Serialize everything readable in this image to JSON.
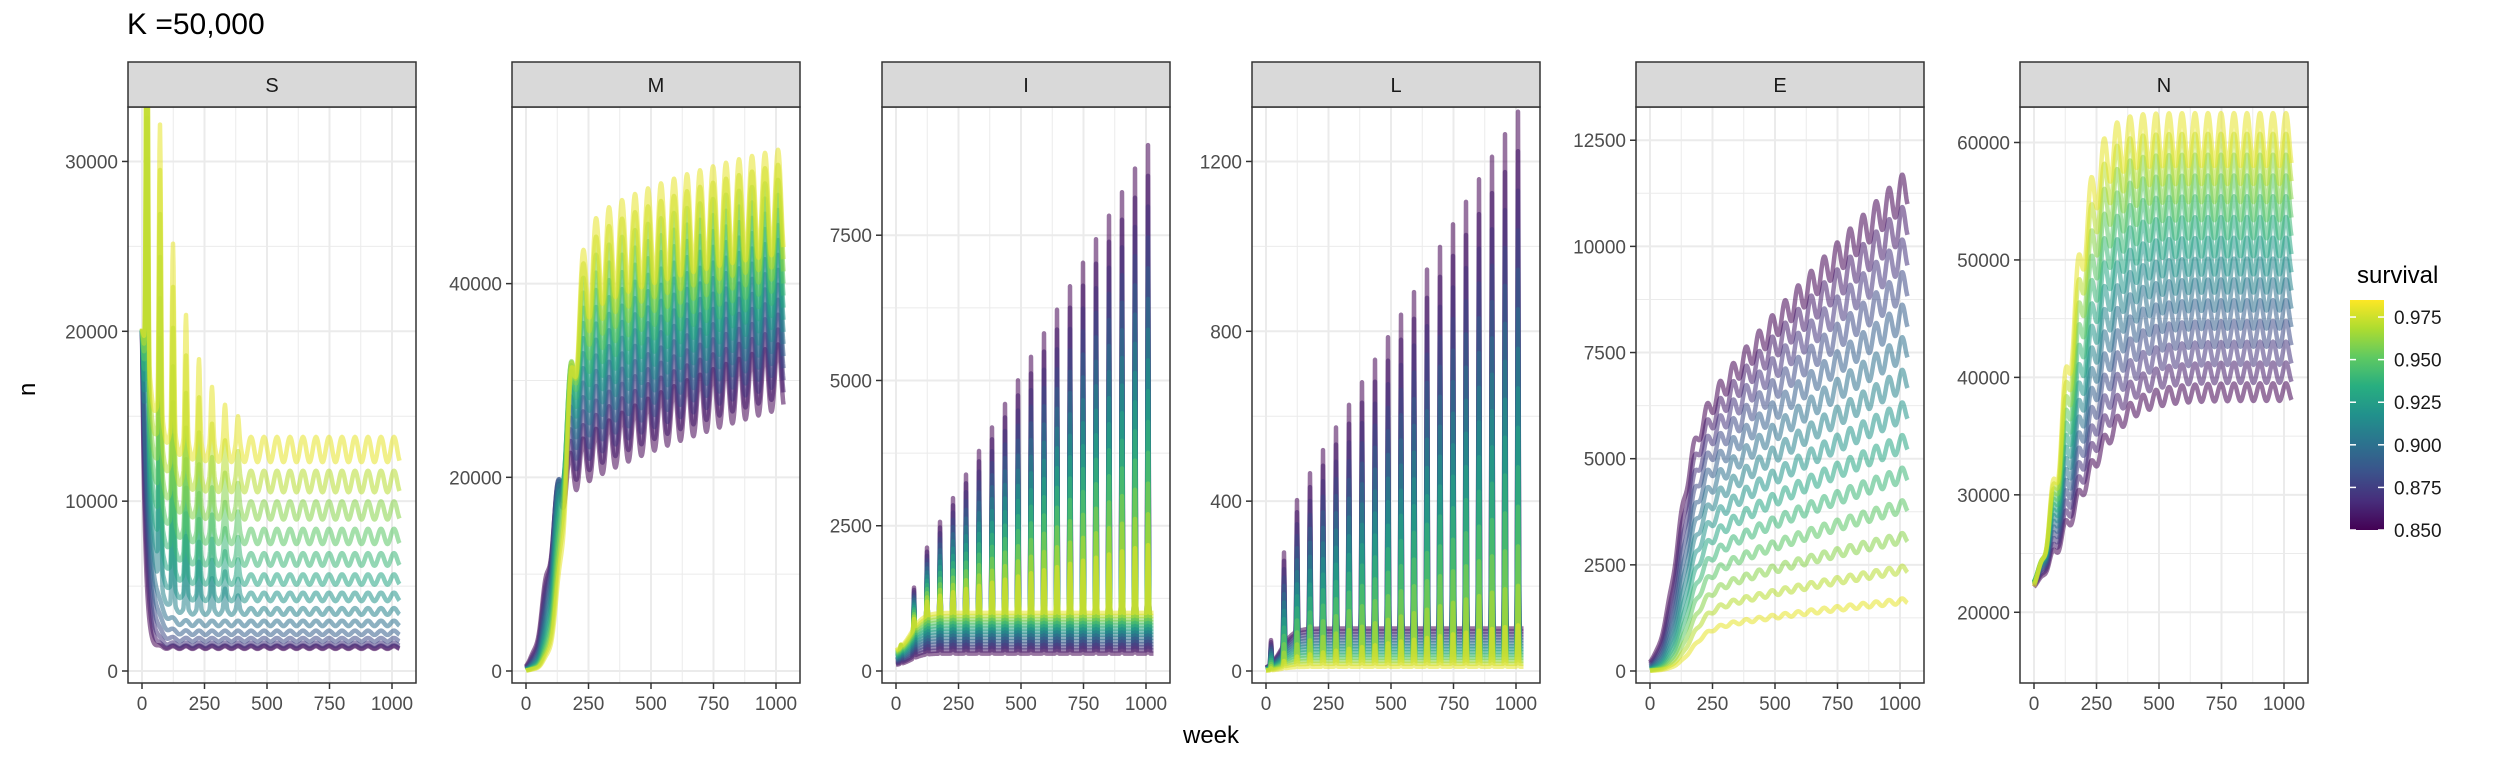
{
  "title": "K =50,000",
  "xlabel": "week",
  "ylabel": "n",
  "legend": {
    "title": "survival",
    "ticks": [
      "0.975",
      "0.950",
      "0.925",
      "0.900",
      "0.875",
      "0.850"
    ],
    "range": [
      0.85,
      0.985
    ],
    "placement": "right"
  },
  "chart_data": [
    {
      "type": "line",
      "panel": "S",
      "xlim": [
        0,
        1040
      ],
      "ylim": [
        0,
        32500
      ],
      "xticks": [
        0,
        250,
        500,
        750,
        1000
      ],
      "yticks": [
        0,
        10000,
        20000,
        30000
      ],
      "ytick_labels": [
        "0",
        "10000",
        "20000",
        "30000"
      ],
      "series_color_variable": "survival",
      "survival_values": [
        0.85,
        0.86,
        0.87,
        0.88,
        0.89,
        0.9,
        0.91,
        0.92,
        0.93,
        0.94,
        0.95,
        0.96,
        0.97,
        0.98
      ],
      "start": 20000,
      "period_weeks": 52,
      "plateau_low_survival": 1300,
      "plateau_high_survival": 12000,
      "peak_max": 31000
    },
    {
      "type": "line",
      "panel": "M",
      "xlim": [
        0,
        1040
      ],
      "ylim": [
        0,
        57000
      ],
      "xticks": [
        0,
        250,
        500,
        750,
        1000
      ],
      "yticks": [
        0,
        20000,
        40000
      ],
      "ytick_labels": [
        "0",
        "20000",
        "40000"
      ],
      "series_color_variable": "survival",
      "start": 0,
      "period_weeks": 52,
      "end_low_survival": 34000,
      "end_high_survival": 54000
    },
    {
      "type": "line",
      "panel": "I",
      "xlim": [
        0,
        1040
      ],
      "ylim": [
        0,
        9500
      ],
      "xticks": [
        0,
        250,
        500,
        750,
        1000
      ],
      "yticks": [
        0,
        2500,
        5000,
        7500
      ],
      "ytick_labels": [
        "0",
        "2500",
        "5000",
        "7500"
      ],
      "series_color_variable": "survival",
      "start": 0,
      "period_weeks": 52,
      "spike_max": 9000,
      "baseline_max": 1000
    },
    {
      "type": "line",
      "panel": "L",
      "xlim": [
        0,
        1040
      ],
      "ylim": [
        0,
        1300
      ],
      "xticks": [
        0,
        250,
        500,
        750,
        1000
      ],
      "yticks": [
        0,
        400,
        800,
        1200
      ],
      "ytick_labels": [
        "0",
        "400",
        "800",
        "1200"
      ],
      "series_color_variable": "survival",
      "start": 0,
      "period_weeks": 52,
      "spike_max": 1250,
      "baseline_max": 100
    },
    {
      "type": "line",
      "panel": "E",
      "xlim": [
        0,
        1040
      ],
      "ylim": [
        0,
        13000
      ],
      "xticks": [
        0,
        250,
        500,
        750,
        1000
      ],
      "yticks": [
        0,
        2500,
        5000,
        7500,
        10000,
        12500
      ],
      "ytick_labels": [
        "0",
        "2500",
        "5000",
        "7500",
        "10000",
        "12500"
      ],
      "series_color_variable": "survival",
      "start": 0,
      "period_weeks": 52,
      "end_low_survival": 11000,
      "end_high_survival": 1600
    },
    {
      "type": "line",
      "panel": "N",
      "xlim": [
        0,
        1040
      ],
      "ylim": [
        15000,
        62000
      ],
      "xticks": [
        0,
        250,
        500,
        750,
        1000
      ],
      "yticks": [
        20000,
        30000,
        40000,
        50000,
        60000
      ],
      "ytick_labels": [
        "20000",
        "30000",
        "40000",
        "50000",
        "60000"
      ],
      "series_color_variable": "survival",
      "start": 20000,
      "period_weeks": 52,
      "end_low_survival": 38000,
      "end_high_survival": 58000
    }
  ],
  "colors": {
    "strip_fill": "#d9d9d9",
    "panel_border": "#333333",
    "grid": "#ebebeb",
    "viridis": [
      "#440154",
      "#472d7b",
      "#3b528b",
      "#2c728e",
      "#21918c",
      "#28ae80",
      "#5ec962",
      "#addc30",
      "#fde725"
    ]
  }
}
